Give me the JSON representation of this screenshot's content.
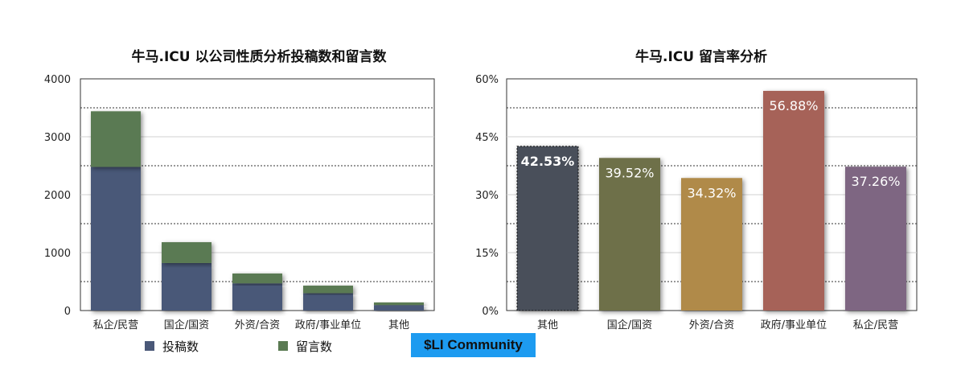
{
  "chart_data": [
    {
      "type": "bar",
      "stacked": true,
      "title": "牛马.ICU 以公司性质分析投稿数和留言数",
      "categories": [
        "私企/民营",
        "国企/国资",
        "外资/合资",
        "政府/事业单位",
        "其他"
      ],
      "series": [
        {
          "name": "投稿数",
          "values": [
            2480,
            820,
            470,
            300,
            95
          ],
          "color": "#4a5878"
        },
        {
          "name": "留言数",
          "values": [
            960,
            360,
            170,
            130,
            45
          ],
          "color": "#5a7a52"
        }
      ],
      "ylim": [
        0,
        4000
      ],
      "yticks": [
        "0",
        "1000",
        "2000",
        "3000",
        "4000"
      ],
      "grid": true,
      "legend": "bottom"
    },
    {
      "type": "bar",
      "title": "牛马.ICU 留言率分析",
      "categories": [
        "其他",
        "国企/国资",
        "外资/合资",
        "政府/事业单位",
        "私企/民营"
      ],
      "values": [
        42.53,
        39.52,
        34.32,
        56.88,
        37.26
      ],
      "labels": [
        "42.53%",
        "39.52%",
        "34.32%",
        "56.88%",
        "37.26%"
      ],
      "colors": [
        "#4a505a",
        "#6e6f48",
        "#b08a48",
        "#a66258",
        "#7e6682"
      ],
      "ylim": [
        0,
        60
      ],
      "yticks": [
        "0%",
        "15%",
        "30%",
        "45%",
        "60%"
      ],
      "grid": true
    }
  ],
  "watermark": "$LI Community"
}
